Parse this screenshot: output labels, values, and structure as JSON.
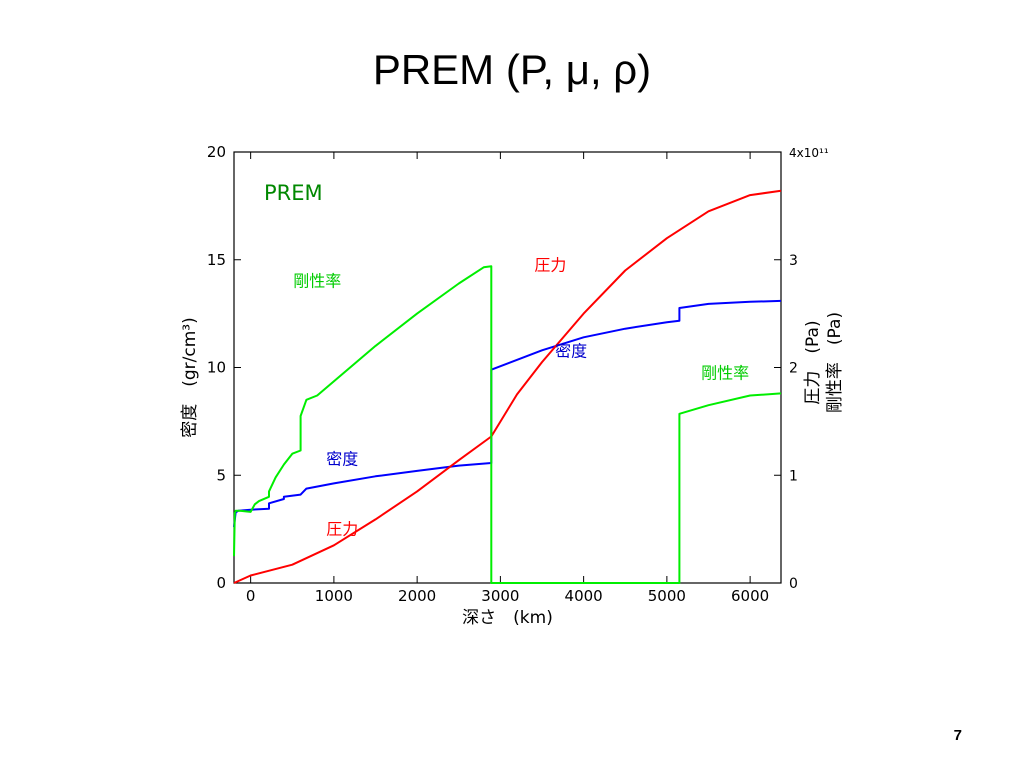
{
  "slide": {
    "title": "PREM (P, μ, ρ)",
    "page_number": "7"
  },
  "chart_data": {
    "type": "line",
    "title": "PREM",
    "xlabel": "深さ　(km)",
    "ylabel_left": "密度　(gr/cm³)",
    "ylabel_right_lines": [
      "圧力　(Pa)",
      "剛性率　(Pa)"
    ],
    "xlim": [
      -200,
      6371
    ],
    "ylim_left": [
      0,
      20
    ],
    "ylim_right": [
      0,
      4
    ],
    "xticks": [
      0,
      1000,
      2000,
      3000,
      4000,
      5000,
      6000
    ],
    "yticks_left": [
      0,
      5,
      10,
      15,
      20
    ],
    "yticks_right": [
      0,
      1,
      2,
      3,
      4
    ],
    "right_axis_exponent": "4x10¹¹",
    "grid": false,
    "series": [
      {
        "name": "密度",
        "axis": "left",
        "color": "#0000ff",
        "x": [
          -200,
          -180,
          -170,
          -150,
          0,
          0,
          220,
          220,
          400,
          400,
          600,
          670,
          670,
          1000,
          1500,
          2000,
          2500,
          2891,
          2891,
          3500,
          4000,
          4500,
          5000,
          5150,
          5150,
          5500,
          6000,
          6371
        ],
        "y": [
          2.6,
          3.3,
          3.3,
          3.35,
          3.4,
          3.4,
          3.45,
          3.7,
          3.9,
          4.0,
          4.1,
          4.38,
          4.38,
          4.62,
          4.95,
          5.2,
          5.45,
          5.57,
          9.9,
          10.8,
          11.4,
          11.8,
          12.1,
          12.17,
          12.76,
          12.95,
          13.05,
          13.09
        ]
      },
      {
        "name": "圧力",
        "axis": "right",
        "color": "#ff0000",
        "x": [
          -200,
          0,
          500,
          1000,
          1500,
          2000,
          2500,
          2891,
          3200,
          3500,
          4000,
          4500,
          5000,
          5500,
          6000,
          6371
        ],
        "y": [
          0,
          0.07,
          0.17,
          0.35,
          0.59,
          0.85,
          1.14,
          1.36,
          1.75,
          2.05,
          2.5,
          2.9,
          3.2,
          3.45,
          3.6,
          3.64
        ]
      },
      {
        "name": "剛性率",
        "axis": "right",
        "color": "#00ee00",
        "x": [
          -200,
          -190,
          -180,
          -130,
          0,
          50,
          100,
          220,
          220,
          300,
          400,
          500,
          600,
          600,
          670,
          670,
          800,
          1500,
          2000,
          2500,
          2800,
          2891,
          2891,
          5150,
          5150,
          5500,
          6000,
          6371
        ],
        "y": [
          0.25,
          0.65,
          0.67,
          0.67,
          0.66,
          0.73,
          0.76,
          0.8,
          0.85,
          0.98,
          1.1,
          1.2,
          1.23,
          1.55,
          1.7,
          1.7,
          1.74,
          2.2,
          2.5,
          2.78,
          2.93,
          2.94,
          0,
          0,
          1.57,
          1.65,
          1.74,
          1.76
        ]
      }
    ],
    "annotations": [
      {
        "text": "PREM",
        "x": 0.5,
        "y": 18.3,
        "axis": "left",
        "color": "#008800",
        "size": "large"
      },
      {
        "text": "剛性率",
        "x": 800,
        "y": 2.75,
        "axis": "right",
        "color": "#00cc00"
      },
      {
        "text": "密度",
        "x": 1100,
        "y": 5.5,
        "axis": "left",
        "color": "#0000cc"
      },
      {
        "text": "圧力",
        "x": 1100,
        "y": 0.45,
        "axis": "right",
        "color": "#ff0000"
      },
      {
        "text": "圧力",
        "x": 3600,
        "y": 2.9,
        "axis": "right",
        "color": "#ff0000"
      },
      {
        "text": "密度",
        "x": 3850,
        "y": 10.5,
        "axis": "left",
        "color": "#0000cc"
      },
      {
        "text": "剛性率",
        "x": 5700,
        "y": 1.9,
        "axis": "right",
        "color": "#00cc00"
      }
    ]
  }
}
